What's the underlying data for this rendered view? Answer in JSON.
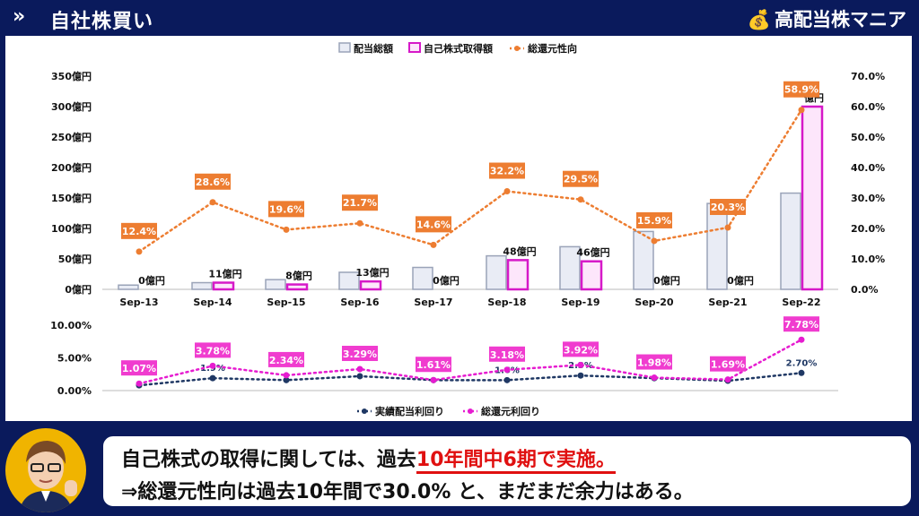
{
  "header": {
    "icon": "»",
    "title": "自社株買い",
    "brand": "高配当株マニア",
    "brand_icon": "money-bag-icon"
  },
  "colors": {
    "navy": "#0a1a5c",
    "dividend_bar_fill": "#e9ecf5",
    "dividend_bar_stroke": "#9aa3b8",
    "buyback_bar_fill": "#fde6fb",
    "buyback_bar_stroke": "#d619c8",
    "payout_line": "#ed7d31",
    "payout_label_bg": "#ed7d31",
    "yield_line": "#1f3864",
    "total_yield_line": "#e61cd0",
    "total_yield_label_bg": "#f03ccf",
    "highlight": "#e01010"
  },
  "chart_data": [
    {
      "type": "bar",
      "categories": [
        "Sep-13",
        "Sep-14",
        "Sep-15",
        "Sep-16",
        "Sep-17",
        "Sep-18",
        "Sep-19",
        "Sep-20",
        "Sep-21",
        "Sep-22"
      ],
      "ylim": [
        0,
        350
      ],
      "y_ticks": [
        "0億円",
        "50億円",
        "100億円",
        "150億円",
        "200億円",
        "250億円",
        "300億円",
        "350億円"
      ],
      "y2lim": [
        0,
        70
      ],
      "y2_ticks": [
        "0.0%",
        "10.0%",
        "20.0%",
        "30.0%",
        "40.0%",
        "50.0%",
        "60.0%",
        "70.0%"
      ],
      "legend": [
        "配当総額",
        "自己株式取得額",
        "総還元性向"
      ],
      "legend_position": "top",
      "series": [
        {
          "name": "配当総額",
          "values": [
            7,
            11,
            16,
            28,
            36,
            55,
            70,
            95,
            141,
            158
          ]
        },
        {
          "name": "自己株式取得額",
          "values": [
            0,
            11,
            8,
            13,
            0,
            48,
            46,
            0,
            0,
            300
          ],
          "labels": [
            "0億円",
            "11億円",
            "8億円",
            "13億円",
            "0億円",
            "48億円",
            "46億円",
            "0億円",
            "0億円",
            "億円"
          ]
        },
        {
          "name": "総還元性向",
          "axis": "right",
          "values": [
            12.4,
            28.6,
            19.6,
            21.7,
            14.6,
            32.2,
            29.5,
            15.9,
            20.3,
            58.9
          ],
          "labels": [
            "12.4%",
            "28.6%",
            "19.6%",
            "21.7%",
            "14.6%",
            "32.2%",
            "29.5%",
            "15.9%",
            "20.3%",
            "58.9%"
          ]
        }
      ]
    },
    {
      "type": "line",
      "categories": [
        "Sep-13",
        "Sep-14",
        "Sep-15",
        "Sep-16",
        "Sep-17",
        "Sep-18",
        "Sep-19",
        "Sep-20",
        "Sep-21",
        "Sep-22"
      ],
      "ylim": [
        0,
        10
      ],
      "y_ticks": [
        "0.00%",
        "5.00%",
        "10.00%"
      ],
      "legend": [
        "実績配当利回り",
        "総還元利回り"
      ],
      "legend_position": "bottom",
      "series": [
        {
          "name": "実績配当利回り",
          "values": [
            0.8,
            1.9,
            1.6,
            2.2,
            1.6,
            1.6,
            2.3,
            1.9,
            1.5,
            2.7
          ],
          "labels": [
            "",
            "1.9%",
            "",
            "",
            "",
            "1.6%",
            "2.3%",
            "",
            "",
            "2.70%"
          ]
        },
        {
          "name": "総還元利回り",
          "values": [
            1.07,
            3.78,
            2.34,
            3.29,
            1.61,
            3.18,
            3.92,
            1.98,
            1.69,
            7.78
          ],
          "labels": [
            "1.07%",
            "3.78%",
            "2.34%",
            "3.29%",
            "1.61%",
            "3.18%",
            "3.92%",
            "1.98%",
            "1.69%",
            "7.78%"
          ]
        }
      ]
    }
  ],
  "comment": {
    "line1_a": "自己株式の取得に関しては、過去",
    "line1_b": "10年間中6期で実施。",
    "line2": "⇒総還元性向は過去10年間で30.0% と、まだまだ余力はある。"
  }
}
